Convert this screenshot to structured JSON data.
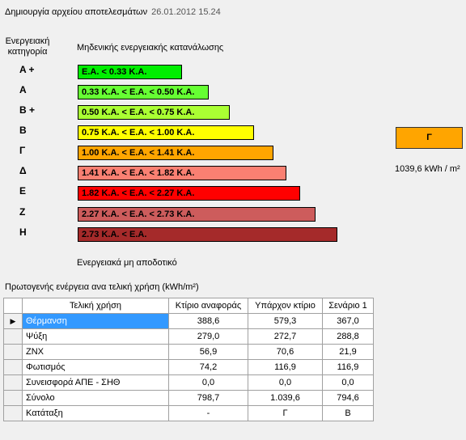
{
  "header": {
    "title": "Δημιουργία αρχείου αποτελεσμάτων",
    "date": "26.01.2012 15.24"
  },
  "rating": {
    "category_title_line1": "Ενεργειακή",
    "category_title_line2": "κατηγορία",
    "top_label": "Μηδενικής ενεργειακής κατανάλωσης",
    "bottom_label": "Ενεργειακά μη αποδοτικό",
    "classes": [
      {
        "label": "A +",
        "range": "Ε.Α. < 0.33 Κ.Α.",
        "color": "#00ee00"
      },
      {
        "label": "A",
        "range": "0.33 Κ.Α. <  Ε.Α. < 0.50 Κ.Α.",
        "color": "#66ff33"
      },
      {
        "label": "B +",
        "range": "0.50 Κ.Α. <  Ε.Α. < 0.75 Κ.Α.",
        "color": "#aaff33"
      },
      {
        "label": "B",
        "range": "0.75 Κ.Α. <  Ε.Α. < 1.00 Κ.Α.",
        "color": "#ffff00"
      },
      {
        "label": "Γ",
        "range": "1.00 Κ.Α. <  Ε.Α. < 1.41 Κ.Α.",
        "color": "#ffa500"
      },
      {
        "label": "Δ",
        "range": "1.41 Κ.Α. <  Ε.Α. < 1.82 Κ.Α.",
        "color": "#fa8072"
      },
      {
        "label": "Ε",
        "range": "1.82 Κ.Α. <  Ε.Α. < 2.27 Κ.Α.",
        "color": "#ff0000"
      },
      {
        "label": "Ζ",
        "range": "2.27 Κ.Α. <  Ε.Α. < 2.73 Κ.Α.",
        "color": "#cd5c5c"
      },
      {
        "label": "Η",
        "range": "2.73 Κ.Α. <  Ε.Α.",
        "color": "#a52a2a"
      }
    ],
    "result_class": "Γ",
    "result_color": "#ffa500",
    "result_value": "1039,6 kWh / m²"
  },
  "table": {
    "title": "Πρωτογενής ενέργεια ανα τελική χρήση (kWh/m²)",
    "columns": [
      "Τελική χρήση",
      "Κτίριο αναφοράς",
      "Υπάρχον κτίριο",
      "Σενάριο 1"
    ],
    "rows": [
      [
        "Θέρμανση",
        "388,6",
        "579,3",
        "367,0"
      ],
      [
        "Ψύξη",
        "279,0",
        "272,7",
        "288,8"
      ],
      [
        "ΖΝΧ",
        "56,9",
        "70,6",
        "21,9"
      ],
      [
        "Φωτισμός",
        "74,2",
        "116,9",
        "116,9"
      ],
      [
        "Συνεισφορά ΑΠΕ - ΣΗΘ",
        "0,0",
        "0,0",
        "0,0"
      ],
      [
        "Σύνολο",
        "798,7",
        "1.039,6",
        "794,6"
      ],
      [
        "Κατάταξη",
        "-",
        "Γ",
        "B"
      ]
    ],
    "current_row_marker": "▶",
    "selected_row": 0
  }
}
